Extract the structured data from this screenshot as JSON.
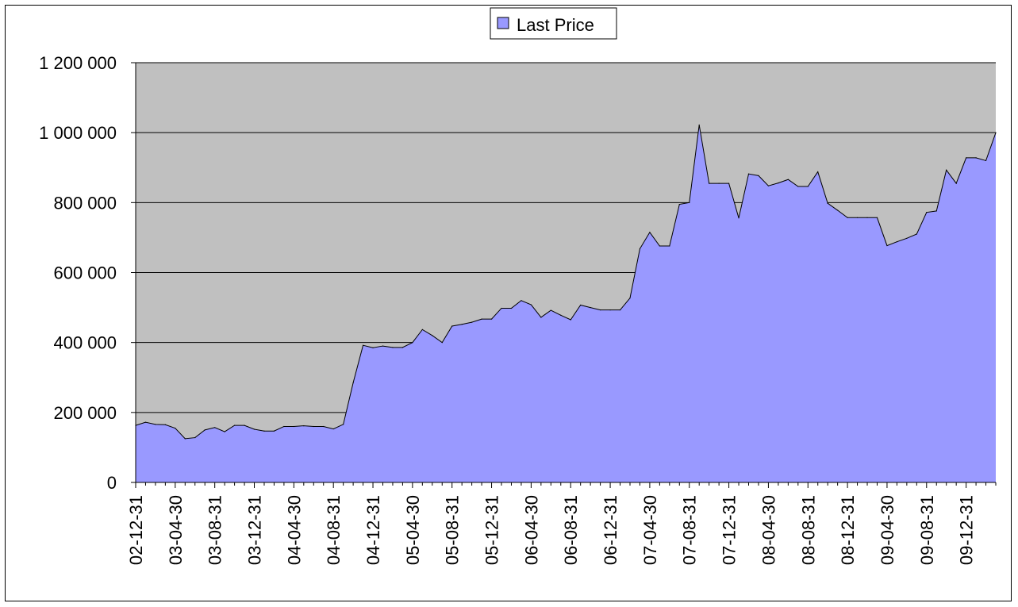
{
  "chart_data": {
    "type": "area",
    "title": "",
    "xlabel": "",
    "ylabel": "",
    "ylim": [
      0,
      1200000
    ],
    "y_ticks": [
      {
        "value": 0,
        "label": "0"
      },
      {
        "value": 200000,
        "label": "200 000"
      },
      {
        "value": 400000,
        "label": "400 000"
      },
      {
        "value": 600000,
        "label": "600 000"
      },
      {
        "value": 800000,
        "label": "800 000"
      },
      {
        "value": 1000000,
        "label": "1 000 000"
      },
      {
        "value": 1200000,
        "label": "1 200 000"
      }
    ],
    "x_tick_labels": [
      "02-12-31",
      "03-04-30",
      "03-08-31",
      "03-12-31",
      "04-04-30",
      "04-08-31",
      "04-12-31",
      "05-04-30",
      "05-08-31",
      "05-12-31",
      "06-04-30",
      "06-08-31",
      "06-12-31",
      "07-04-30",
      "07-08-31",
      "07-12-31",
      "08-04-30",
      "08-08-31",
      "08-12-31",
      "09-04-30",
      "09-08-31",
      "09-12-31"
    ],
    "legend": {
      "position": "top-center",
      "entries": [
        "Last Price"
      ]
    },
    "grid": "horizontal",
    "colors": {
      "area_fill": "#9999ff",
      "plot_background": "#c0c0c0",
      "line": "#000000"
    },
    "series": [
      {
        "name": "Last Price",
        "x": [
          "02-12-31",
          "03-01-31",
          "03-02-28",
          "03-03-31",
          "03-04-30",
          "03-05-31",
          "03-06-30",
          "03-07-31",
          "03-08-31",
          "03-09-30",
          "03-10-31",
          "03-11-30",
          "03-12-31",
          "04-01-31",
          "04-02-29",
          "04-03-31",
          "04-04-30",
          "04-05-31",
          "04-06-30",
          "04-07-31",
          "04-08-31",
          "04-09-30",
          "04-10-31",
          "04-11-30",
          "04-12-31",
          "05-01-31",
          "05-02-28",
          "05-03-31",
          "05-04-30",
          "05-05-31",
          "05-06-30",
          "05-07-31",
          "05-08-31",
          "05-09-30",
          "05-10-31",
          "05-11-30",
          "05-12-31",
          "06-01-31",
          "06-02-28",
          "06-03-31",
          "06-04-30",
          "06-05-31",
          "06-06-30",
          "06-07-31",
          "06-08-31",
          "06-09-30",
          "06-10-31",
          "06-11-30",
          "06-12-31",
          "07-01-31",
          "07-02-28",
          "07-03-31",
          "07-04-30",
          "07-05-31",
          "07-06-30",
          "07-07-31",
          "07-08-31",
          "07-09-30",
          "07-10-31",
          "07-11-30",
          "07-12-31",
          "08-01-31",
          "08-02-29",
          "08-03-31",
          "08-04-30",
          "08-05-31",
          "08-06-30",
          "08-07-31",
          "08-08-31",
          "08-09-30",
          "08-10-31",
          "08-11-30",
          "08-12-31",
          "09-01-31",
          "09-02-28",
          "09-03-31",
          "09-04-30",
          "09-05-31",
          "09-06-30",
          "09-07-31",
          "09-08-31",
          "09-09-30",
          "09-10-31",
          "09-11-30",
          "09-12-31",
          "10-01-31",
          "10-02-28",
          "10-03-31"
        ],
        "values": [
          163000,
          172000,
          166000,
          165000,
          155000,
          125000,
          128000,
          150000,
          157000,
          145000,
          163000,
          163000,
          152000,
          147000,
          147000,
          160000,
          160000,
          162000,
          160000,
          160000,
          153000,
          166000,
          285000,
          392000,
          385000,
          390000,
          386000,
          386000,
          400000,
          437000,
          420000,
          400000,
          447000,
          452000,
          458000,
          467000,
          467000,
          498000,
          498000,
          520000,
          508000,
          472000,
          492000,
          478000,
          465000,
          507000,
          500000,
          493000,
          493000,
          493000,
          527000,
          668000,
          715000,
          676000,
          676000,
          795000,
          800000,
          1022000,
          855000,
          855000,
          855000,
          756000,
          882000,
          877000,
          848000,
          856000,
          866000,
          846000,
          846000,
          888000,
          798000,
          778000,
          757000,
          757000,
          757000,
          757000,
          677000,
          688000,
          698000,
          710000,
          772000,
          776000,
          893000,
          855000,
          928000,
          928000,
          920000,
          1000000
        ]
      }
    ]
  }
}
